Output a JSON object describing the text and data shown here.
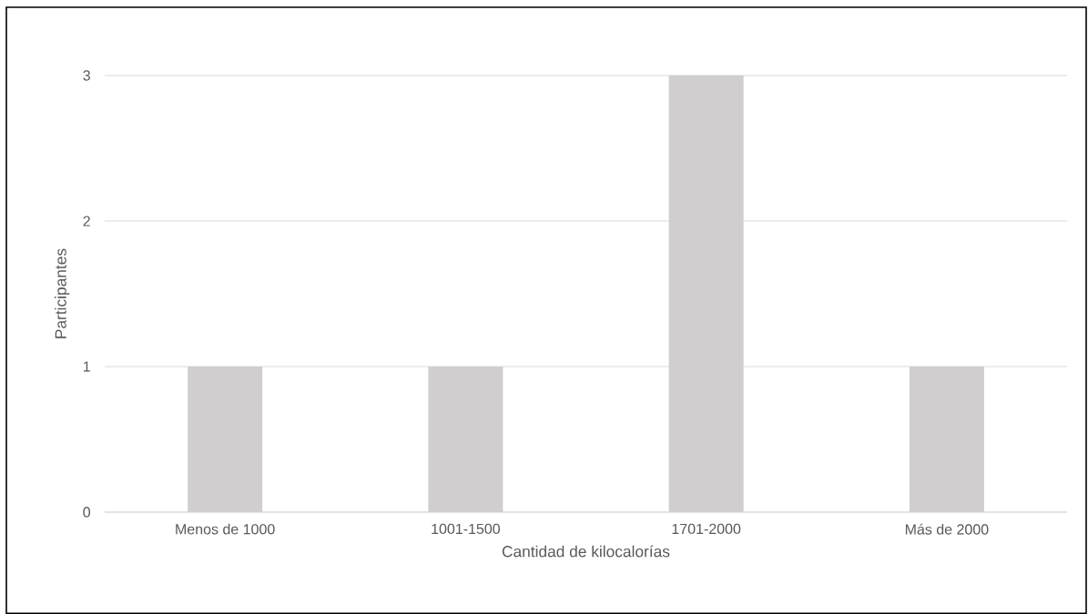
{
  "chart_data": {
    "type": "bar",
    "xlabel": "Cantidad de kilocalorías",
    "ylabel": "Participantes",
    "categories": [
      "Menos de 1000",
      "1001-1500",
      "1701-2000",
      "Más de 2000"
    ],
    "values": [
      1,
      1,
      3,
      1
    ],
    "color": "#d0cece",
    "ylim": [
      0,
      3
    ],
    "yticks": [
      0,
      1,
      2,
      3
    ],
    "grid": "y"
  }
}
